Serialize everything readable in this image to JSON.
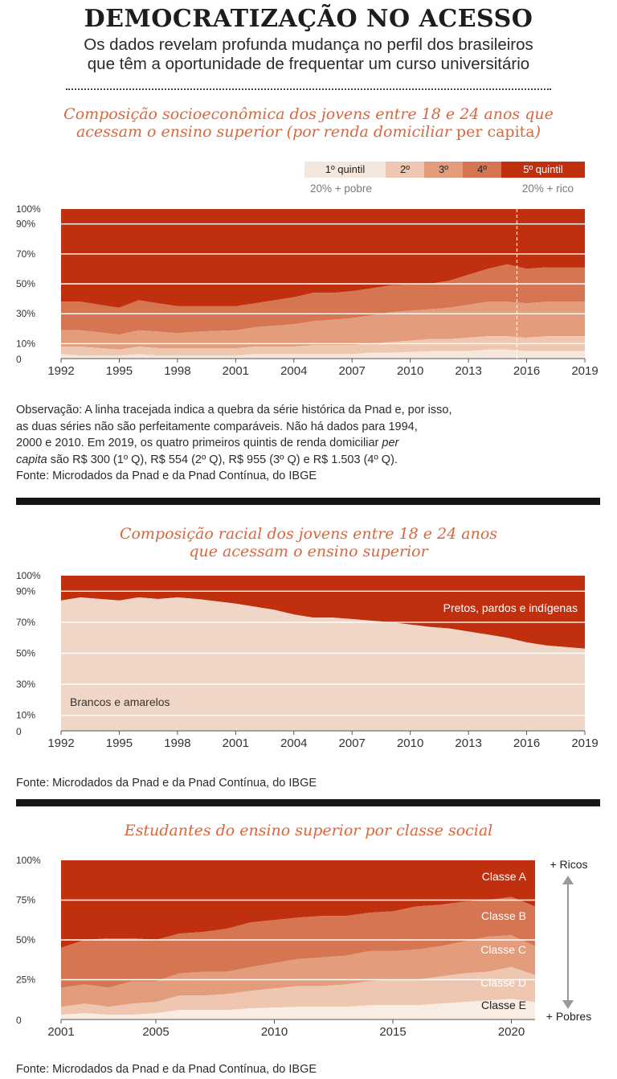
{
  "header": {
    "title": "DEMOCRATIZAÇÃO NO ACESSO",
    "subtitle_line1": "Os dados revelam profunda mudança no perfil dos brasileiros",
    "subtitle_line2": "que têm a oportunidade de frequentar um curso universitário"
  },
  "colors": {
    "q1": "#f6e7dc",
    "q2": "#efc7b0",
    "q3": "#e39c7c",
    "q4": "#d57551",
    "q5": "#c1300e",
    "light": "#efd6c6",
    "accent": "#d9663c"
  },
  "charts": [
    {
      "title_line1": "Composição socioeconômica dos jovens entre 18 e 24 anos que",
      "title_line2_a": "acessam o ensino superior (por renda domiciliar ",
      "title_line2_b": "per capita",
      "title_line2_c": ")",
      "legend": {
        "q1": "1º quintil",
        "q2": "2º",
        "q3": "3º",
        "q4": "4º",
        "q5": "5º quintil",
        "left_note": "20% + pobre",
        "right_note": "20% + rico"
      },
      "note_line1": "Observação: A linha tracejada indica a quebra da série histórica da Pnad e, por isso,",
      "note_line2": "as duas séries não são perfeitamente comparáveis. Não há dados para 1994,",
      "note_line3": "2000 e 2010. Em 2019, os quatro primeiros quintis de renda domiciliar ",
      "note_line3_italic": "per",
      "note_line4_italic": "capita",
      "note_line4": " são R$ 300 (1º Q), R$ 554 (2º Q), R$ 955 (3º Q) e R$ 1.503 (4º Q).",
      "source": "Fonte: Microdados da Pnad e da Pnad Contínua, do IBGE"
    },
    {
      "title_line1": "Composição racial dos jovens entre 18 e 24 anos",
      "title_line2": "que acessam o ensino superior",
      "label_top": "Pretos, pardos e indígenas",
      "label_bottom": "Brancos e amarelos",
      "source": "Fonte: Microdados da Pnad e da Pnad Contínua, do IBGE"
    },
    {
      "title_line1": "Estudantes do ensino superior por classe social",
      "label_rich": "+ Ricos",
      "label_poor": "+ Pobres",
      "source": "Fonte: Microdados da Pnad e da Pnad Contínua, do IBGE"
    }
  ],
  "chart_data": [
    {
      "type": "area",
      "x": [
        1992,
        1993,
        1995,
        1996,
        1997,
        1998,
        1999,
        2001,
        2002,
        2003,
        2004,
        2005,
        2006,
        2007,
        2008,
        2009,
        2011,
        2012,
        2013,
        2014,
        2015,
        2016,
        2017,
        2018,
        2019
      ],
      "yticks": [
        "100%",
        "90%",
        "70%",
        "50%",
        "30%",
        "10%",
        "0"
      ],
      "ytick_values": [
        100,
        90,
        70,
        50,
        30,
        10,
        0
      ],
      "xticks": [
        1992,
        1995,
        1998,
        2001,
        2004,
        2007,
        2010,
        2013,
        2016,
        2019
      ],
      "break_x": 2015.5,
      "ylim": [
        0,
        100
      ],
      "series": [
        {
          "name": "1º quintil",
          "values": [
            3,
            2,
            2,
            3,
            2,
            2,
            2,
            2,
            3,
            3,
            3,
            3,
            3,
            3,
            4,
            4,
            5,
            5,
            5,
            6,
            6,
            5,
            5,
            5,
            5
          ]
        },
        {
          "name": "2º",
          "values": [
            5,
            6,
            4,
            5,
            5,
            5,
            5,
            5,
            5,
            5,
            5,
            6,
            6,
            6,
            6,
            7,
            8,
            8,
            9,
            9,
            9,
            9,
            10,
            10,
            10
          ]
        },
        {
          "name": "3º",
          "values": [
            11,
            11,
            10,
            11,
            11,
            10,
            11,
            12,
            13,
            14,
            15,
            16,
            17,
            18,
            19,
            20,
            20,
            21,
            22,
            23,
            23,
            23,
            23,
            23,
            23
          ]
        },
        {
          "name": "4º",
          "values": [
            19,
            19,
            18,
            20,
            19,
            18,
            17,
            16,
            16,
            17,
            18,
            19,
            18,
            18,
            18,
            18,
            17,
            18,
            20,
            22,
            25,
            23,
            23,
            23,
            23
          ]
        },
        {
          "name": "5º quintil",
          "values": [
            62,
            62,
            66,
            61,
            63,
            65,
            65,
            65,
            63,
            61,
            59,
            56,
            56,
            55,
            53,
            51,
            50,
            48,
            44,
            40,
            37,
            40,
            39,
            39,
            39
          ]
        }
      ]
    },
    {
      "type": "area",
      "x": [
        1992,
        1993,
        1995,
        1996,
        1997,
        1998,
        1999,
        2001,
        2002,
        2003,
        2004,
        2005,
        2006,
        2007,
        2008,
        2009,
        2011,
        2012,
        2013,
        2014,
        2015,
        2016,
        2017,
        2018,
        2019
      ],
      "yticks": [
        "100%",
        "90%",
        "70%",
        "50%",
        "30%",
        "10%",
        "0"
      ],
      "ytick_values": [
        100,
        90,
        70,
        50,
        30,
        10,
        0
      ],
      "xticks": [
        1992,
        1995,
        1998,
        2001,
        2004,
        2007,
        2010,
        2013,
        2016,
        2019
      ],
      "ylim": [
        0,
        100
      ],
      "series": [
        {
          "name": "Brancos e amarelos",
          "values": [
            84,
            86,
            84,
            86,
            85,
            86,
            85,
            82,
            80,
            78,
            75,
            73,
            73,
            72,
            71,
            70,
            67,
            66,
            64,
            62,
            60,
            57,
            55,
            54,
            53
          ]
        },
        {
          "name": "Pretos, pardos e indígenas",
          "values": [
            16,
            14,
            16,
            14,
            15,
            14,
            15,
            18,
            20,
            22,
            25,
            27,
            27,
            28,
            29,
            30,
            33,
            34,
            36,
            38,
            40,
            43,
            45,
            46,
            47
          ]
        }
      ]
    },
    {
      "type": "area",
      "x": [
        2001,
        2002,
        2003,
        2004,
        2005,
        2006,
        2007,
        2008,
        2009,
        2011,
        2012,
        2013,
        2014,
        2015,
        2016,
        2017,
        2018,
        2019,
        2020,
        2021
      ],
      "yticks": [
        "100%",
        "75%",
        "50%",
        "25%",
        "0"
      ],
      "ytick_values": [
        100,
        75,
        50,
        25,
        0
      ],
      "xticks": [
        2001,
        2005,
        2010,
        2015,
        2020
      ],
      "ylim": [
        0,
        100
      ],
      "series": [
        {
          "name": "Classe E",
          "values": [
            3,
            4,
            3,
            3,
            4,
            6,
            6,
            6,
            7,
            8,
            8,
            8,
            9,
            9,
            9,
            10,
            11,
            12,
            13,
            11
          ]
        },
        {
          "name": "Classe D",
          "values": [
            5,
            6,
            5,
            7,
            7,
            9,
            9,
            10,
            11,
            13,
            13,
            14,
            15,
            16,
            16,
            17,
            18,
            18,
            20,
            17
          ]
        },
        {
          "name": "Classe C",
          "values": [
            12,
            12,
            12,
            14,
            13,
            14,
            15,
            14,
            15,
            17,
            18,
            18,
            19,
            18,
            19,
            19,
            20,
            22,
            20,
            18
          ]
        },
        {
          "name": "Classe B",
          "values": [
            25,
            28,
            31,
            27,
            26,
            25,
            25,
            27,
            28,
            26,
            26,
            25,
            24,
            25,
            27,
            26,
            25,
            23,
            24,
            25
          ]
        },
        {
          "name": "Classe A",
          "values": [
            55,
            50,
            49,
            49,
            50,
            46,
            45,
            43,
            39,
            36,
            35,
            35,
            33,
            32,
            29,
            28,
            26,
            25,
            23,
            29
          ]
        }
      ]
    }
  ]
}
